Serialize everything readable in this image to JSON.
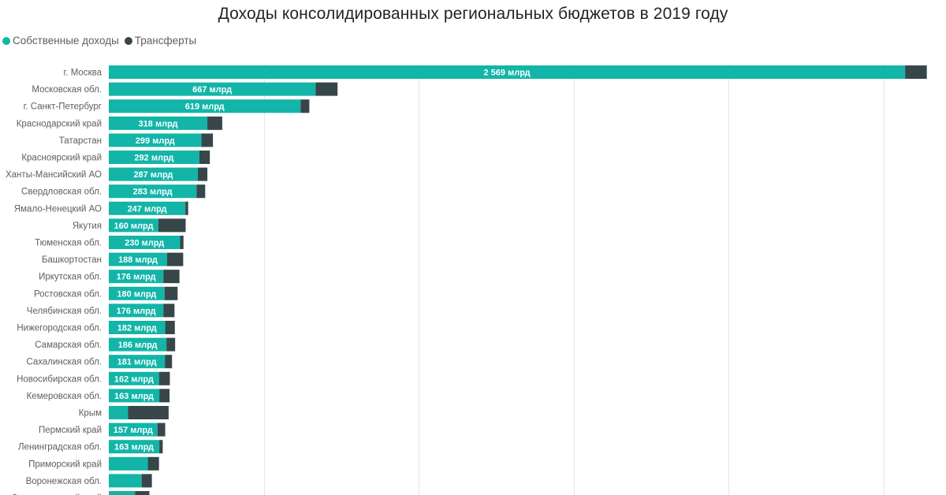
{
  "chart_data": {
    "type": "bar",
    "orientation": "horizontal",
    "stacked": true,
    "title": "Доходы консолидированных региональных бюджетов в 2019 году",
    "legend_position": "top-left",
    "grid": true,
    "xlim": [
      0,
      2650
    ],
    "gridlines": [
      500,
      1000,
      1500,
      2000,
      2500
    ],
    "categories": [
      "г. Москва",
      "Московская обл.",
      "г. Санкт-Петербург",
      "Краснодарский край",
      "Татарстан",
      "Красноярский край",
      "Ханты-Мансийский АО",
      "Свердловская обл.",
      "Ямало-Ненецкий АО",
      "Якутия",
      "Тюменская обл.",
      "Башкортостан",
      "Иркутская обл.",
      "Ростовская обл.",
      "Челябинская обл.",
      "Нижегородская обл.",
      "Самарская обл.",
      "Сахалинская обл.",
      "Новосибирская обл.",
      "Кемеровская обл.",
      "Крым",
      "Пермский край",
      "Ленинградская обл.",
      "Приморский край",
      "Воронежская обл.",
      "Ставропольский край"
    ],
    "series": [
      {
        "name": "Собственные доходы",
        "color": "#12b5a8",
        "values": [
          2569,
          667,
          619,
          318,
          299,
          292,
          287,
          283,
          247,
          160,
          230,
          188,
          176,
          180,
          176,
          182,
          186,
          181,
          162,
          163,
          62,
          157,
          163,
          126,
          106,
          85
        ],
        "labels": [
          "2 569 млрд",
          "667 млрд",
          "619 млрд",
          "318 млрд",
          "299 млрд",
          "292 млрд",
          "287 млрд",
          "283 млрд",
          "247 млрд",
          "160 млрд",
          "230 млрд",
          "188 млрд",
          "176 млрд",
          "180 млрд",
          "176 млрд",
          "182 млрд",
          "186 млрд",
          "181 млрд",
          "162 млрд",
          "163 млрд",
          "",
          "157 млрд",
          "163 млрд",
          "",
          "",
          ""
        ]
      },
      {
        "name": "Трансферты",
        "color": "#374649",
        "values": [
          70,
          71,
          28,
          48,
          37,
          34,
          31,
          28,
          9,
          88,
          11,
          52,
          52,
          42,
          36,
          31,
          28,
          23,
          35,
          33,
          131,
          25,
          11,
          36,
          33,
          46
        ]
      }
    ]
  }
}
